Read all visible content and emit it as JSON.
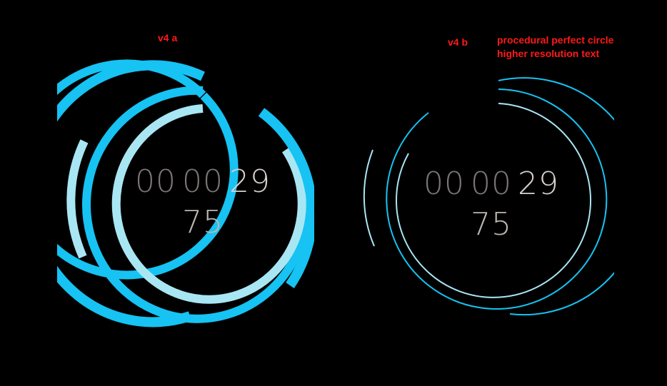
{
  "labels": {
    "left_title": "v4 a",
    "right_title": "v4 b",
    "note_line1": "procedural perfect circle",
    "note_line2": "higher resolution text"
  },
  "colors": {
    "accent": "#1ec8f5",
    "accent_light": "#a9e6f3",
    "label_red": "#ff1a1a",
    "digit_dim": "#7c7675",
    "digit_bright": "#d8d0cc"
  },
  "watch_a": {
    "hours": "00",
    "minutes": "00",
    "seconds": "29",
    "hundredths": "75"
  },
  "watch_b": {
    "hours": "00",
    "minutes": "00",
    "seconds": "29",
    "hundredths": "75"
  }
}
